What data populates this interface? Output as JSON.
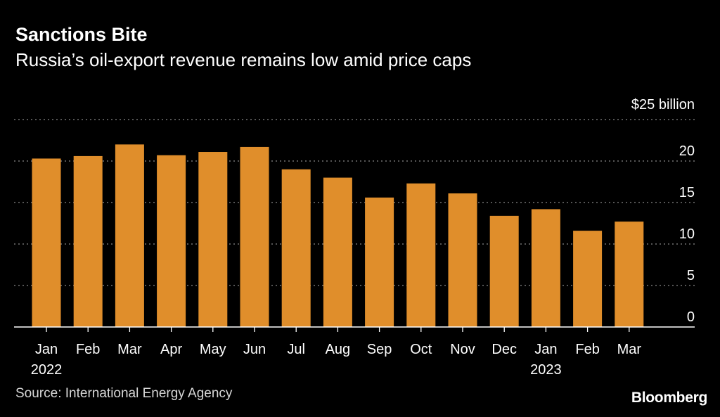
{
  "header": {
    "title": "Sanctions Bite",
    "subtitle": "Russia’s oil-export revenue remains low amid price caps"
  },
  "footer": {
    "source": "Source: International Energy Agency",
    "brand": "Bloomberg"
  },
  "colors": {
    "background": "#000000",
    "bar": "#e08e2b",
    "grid": "#8a8a8a",
    "text": "#ffffff"
  },
  "chart_data": {
    "type": "bar",
    "categories": [
      "Jan",
      "Feb",
      "Mar",
      "Apr",
      "May",
      "Jun",
      "Jul",
      "Aug",
      "Sep",
      "Oct",
      "Nov",
      "Dec",
      "Jan",
      "Feb",
      "Mar"
    ],
    "year_labels": [
      {
        "category_index": 0,
        "label": "2022"
      },
      {
        "category_index": 12,
        "label": "2023"
      }
    ],
    "values": [
      20.3,
      20.6,
      22.0,
      20.7,
      21.1,
      21.7,
      19.0,
      18.0,
      15.6,
      17.3,
      16.1,
      13.4,
      14.2,
      11.6,
      12.7
    ],
    "unit_label": "$25 billion",
    "yticks": [
      "0",
      "5",
      "10",
      "15",
      "20"
    ],
    "ylim": [
      0,
      25
    ],
    "ylabel": "",
    "xlabel": "",
    "grid": true,
    "grid_style": "dotted",
    "yaxis_position": "right"
  }
}
